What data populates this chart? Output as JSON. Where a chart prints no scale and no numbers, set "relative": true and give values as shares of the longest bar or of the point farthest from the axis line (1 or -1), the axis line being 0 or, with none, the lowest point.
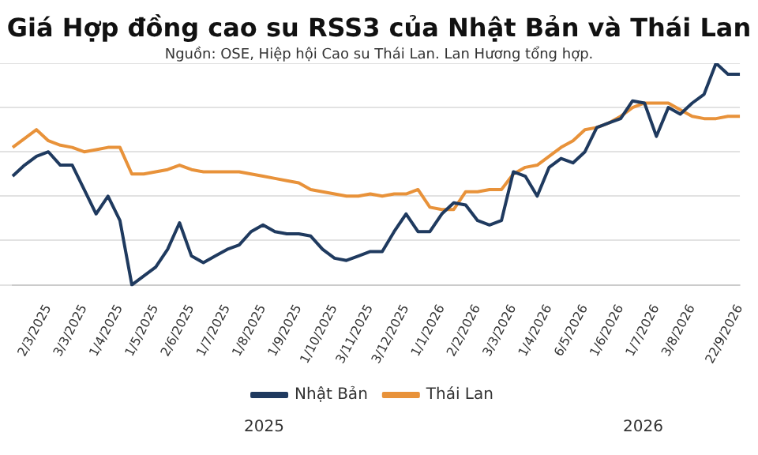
{
  "chart_data": {
    "type": "line",
    "title": "Giá Hợp đồng cao su RSS3 của Nhật Bản và Thái Lan",
    "subtitle": "Nguồn: OSE, Hiệp hội Cao su Thái Lan. Lan Hương tổng hợp.",
    "categories": [
      null,
      null,
      null,
      "2/3/2025",
      null,
      null,
      "3/3/2025",
      null,
      null,
      "1/4/2025",
      null,
      null,
      "1/5/2025",
      null,
      null,
      "2/6/2025",
      null,
      null,
      "1/7/2025",
      null,
      null,
      "1/8/2025",
      null,
      null,
      "1/9/2025",
      null,
      null,
      "1/10/2025",
      null,
      null,
      "3/11/2025",
      null,
      null,
      "3/12/2025",
      null,
      null,
      "1/1/2026",
      null,
      null,
      "2/2/2026",
      null,
      null,
      "3/3/2026",
      null,
      null,
      "1/4/2026",
      null,
      null,
      "6/5/2026",
      null,
      null,
      "1/6/2026",
      null,
      null,
      "1/7/2026",
      null,
      null,
      "3/8/2026",
      null,
      null,
      null,
      "22/9/2026"
    ],
    "relative": true,
    "series": [
      {
        "name": "Nhật Bản",
        "color": "#1f3a5f",
        "values": [
          0.49,
          0.54,
          0.58,
          0.6,
          0.54,
          0.54,
          0.43,
          0.32,
          0.4,
          0.29,
          0,
          0.04,
          0.08,
          0.16,
          0.28,
          0.13,
          0.1,
          0.13,
          0.16,
          0.18,
          0.24,
          0.27,
          0.24,
          0.23,
          0.23,
          0.22,
          0.16,
          0.12,
          0.11,
          0.13,
          0.15,
          0.15,
          0.24,
          0.32,
          0.24,
          0.24,
          0.32,
          0.37,
          0.36,
          0.29,
          0.27,
          0.29,
          0.51,
          0.49,
          0.4,
          0.53,
          0.57,
          0.55,
          0.6,
          0.71,
          0.73,
          0.75,
          0.83,
          0.82,
          0.67,
          0.8,
          0.77,
          0.82,
          0.86,
          1,
          0.95,
          0.95
        ]
      },
      {
        "name": "Thái Lan",
        "color": "#e8923a",
        "values": [
          0.62,
          0.66,
          0.7,
          0.65,
          0.63,
          0.62,
          0.6,
          0.61,
          0.62,
          0.62,
          0.5,
          0.5,
          0.51,
          0.52,
          0.54,
          0.52,
          0.51,
          0.51,
          0.51,
          0.51,
          0.5,
          0.49,
          0.48,
          0.47,
          0.46,
          0.43,
          0.42,
          0.41,
          0.4,
          0.4,
          0.41,
          0.4,
          0.41,
          0.41,
          0.43,
          0.35,
          0.34,
          0.34,
          0.42,
          0.42,
          0.43,
          0.43,
          0.5,
          0.53,
          0.54,
          0.58,
          0.62,
          0.65,
          0.7,
          0.71,
          0.73,
          0.76,
          0.8,
          0.82,
          0.82,
          0.82,
          0.79,
          0.76,
          0.75,
          0.75,
          0.76,
          0.76
        ]
      }
    ],
    "annotations": [
      "2025",
      "2026"
    ],
    "legend": "bottom",
    "grid": "y",
    "marker": "none",
    "line_style": "solid"
  }
}
